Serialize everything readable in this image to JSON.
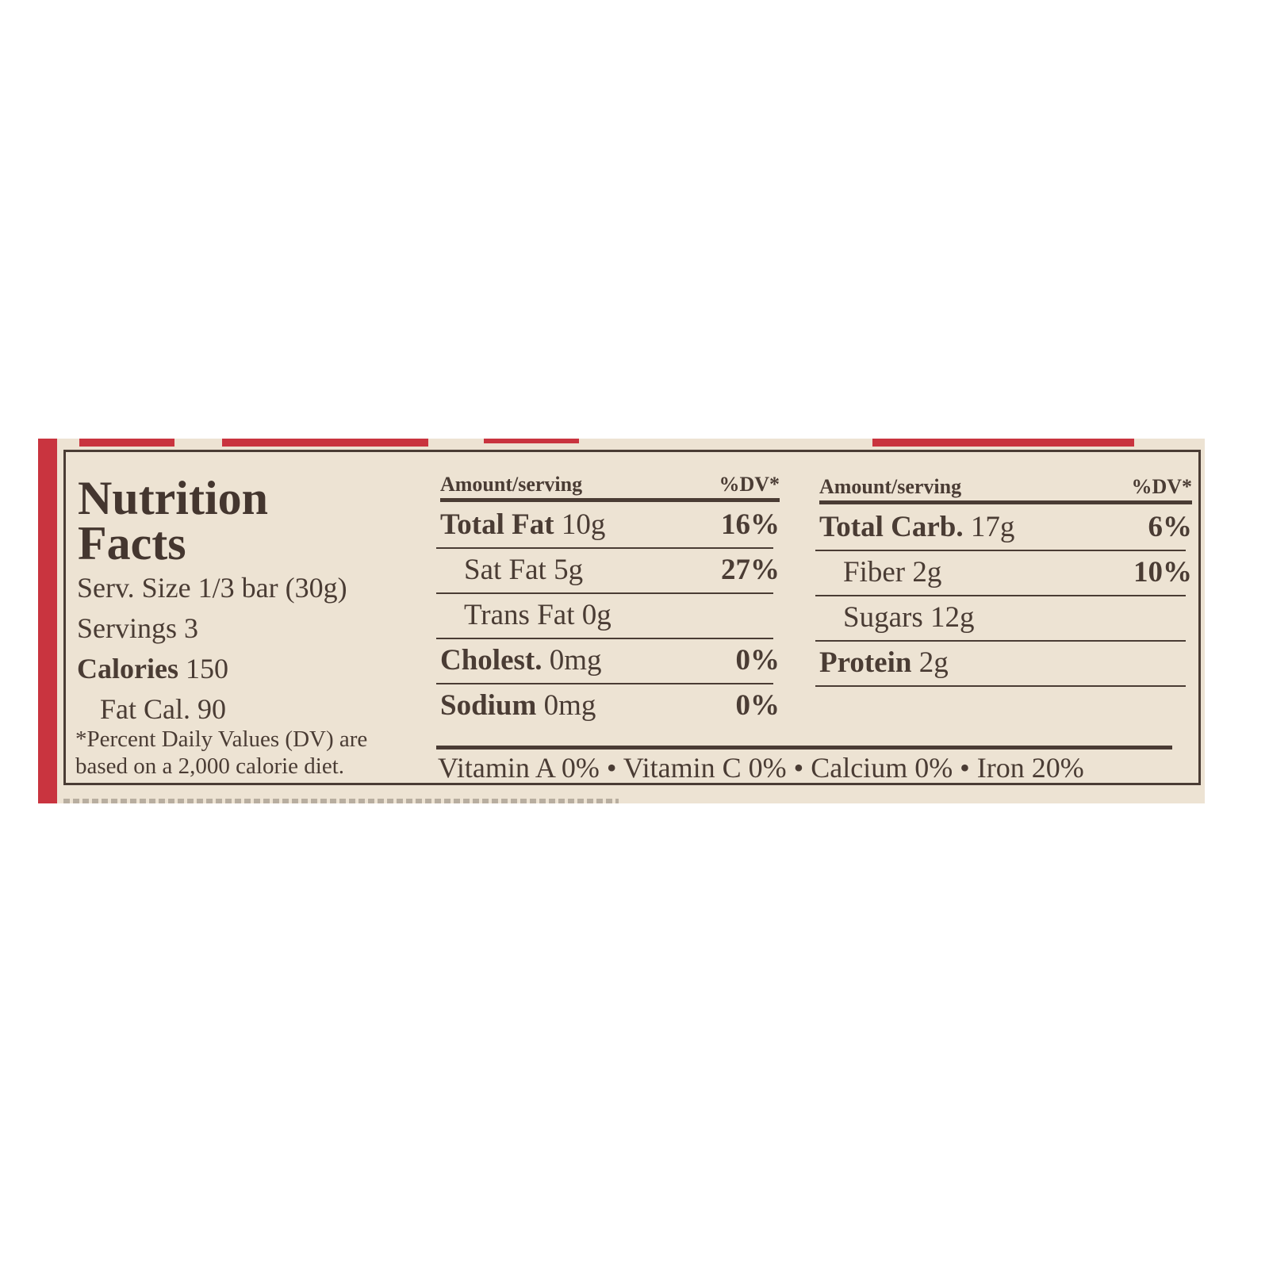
{
  "title": [
    "Nutrition",
    "Facts"
  ],
  "serving_size": "Serv. Size 1/3 bar (30g)",
  "servings": "Servings 3",
  "calories": {
    "label": "Calories",
    "value": "150"
  },
  "fat_calories": "Fat Cal. 90",
  "footnote": [
    "*Percent Daily Values (DV) are",
    "based on a 2,000 calorie diet."
  ],
  "left_table": {
    "header_amount": "Amount/serving",
    "header_dv": "%DV*",
    "rows": [
      {
        "name": "Total Fat",
        "amount": "10g",
        "dv": "16%",
        "bold": true
      },
      {
        "name": "Sat Fat",
        "amount": "5g",
        "dv": "27%",
        "bold": false
      },
      {
        "name": "Trans Fat",
        "amount": "0g",
        "dv": "",
        "bold": false
      },
      {
        "name": "Cholest.",
        "amount": "0mg",
        "dv": "0%",
        "bold": true
      },
      {
        "name": "Sodium",
        "amount": "0mg",
        "dv": "0%",
        "bold": true
      }
    ]
  },
  "right_table": {
    "header_amount": "Amount/serving",
    "header_dv": "%DV*",
    "rows": [
      {
        "name": "Total Carb.",
        "amount": "17g",
        "dv": "6%",
        "bold": true
      },
      {
        "name": "Fiber",
        "amount": "2g",
        "dv": "10%",
        "bold": false
      },
      {
        "name": "Sugars",
        "amount": "12g",
        "dv": "",
        "bold": false
      },
      {
        "name": "Protein",
        "amount": "2g",
        "dv": "",
        "bold": true
      }
    ]
  },
  "vitamins": "Vitamin A 0% • Vitamin C 0% • Calcium 0% • Iron 20%",
  "colors": {
    "label_bg": "#ede3d3",
    "accent_red": "#c9343f",
    "ink": "#4a3c34"
  }
}
